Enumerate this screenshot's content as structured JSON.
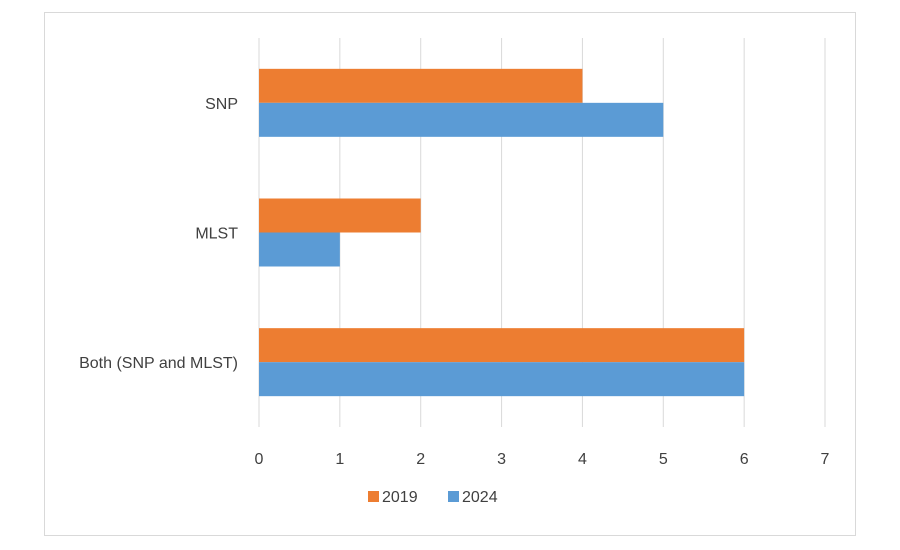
{
  "chart_data": {
    "type": "bar",
    "orientation": "horizontal",
    "categories": [
      "SNP",
      "MLST",
      "Both (SNP and MLST)"
    ],
    "series": [
      {
        "name": "2019",
        "color": "#ed7d31",
        "values": [
          4,
          2,
          6
        ]
      },
      {
        "name": "2024",
        "color": "#5b9bd5",
        "values": [
          5,
          1,
          6
        ]
      }
    ],
    "xlim": [
      0,
      7
    ],
    "xticks": [
      0,
      1,
      2,
      3,
      4,
      5,
      6,
      7
    ],
    "title": "",
    "xlabel": "",
    "ylabel": "",
    "grid": "vertical",
    "legend_position": "bottom"
  }
}
